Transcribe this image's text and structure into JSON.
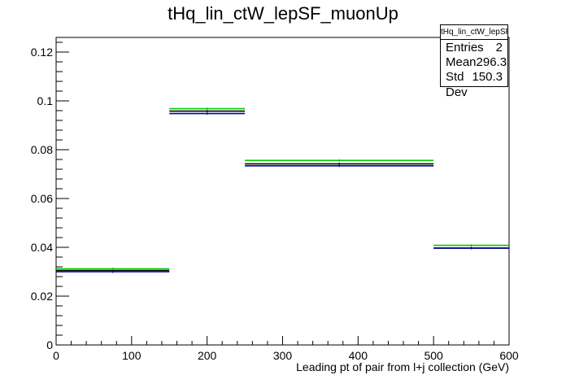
{
  "chart_data": {
    "type": "histogram",
    "title": "tHq_lin_ctW_lepSF_muonUp",
    "xlabel": "Leading pt of pair from l+j collection (GeV)",
    "ylabel": "",
    "xlim": [
      0,
      600
    ],
    "ylim": [
      0,
      0.126
    ],
    "x_ticks": [
      0,
      100,
      200,
      300,
      400,
      500,
      600
    ],
    "y_ticks": [
      0,
      0.02,
      0.04,
      0.06,
      0.08,
      0.1,
      0.12
    ],
    "x_tick_labels": [
      "0",
      "100",
      "200",
      "300",
      "400",
      "500",
      "600"
    ],
    "y_tick_labels": [
      "0",
      "0.02",
      "0.04",
      "0.06",
      "0.08",
      "0.1",
      "0.12"
    ],
    "bin_edges": [
      0,
      150,
      250,
      500,
      600
    ],
    "series": [
      {
        "color": "#000000",
        "values": [
          0.0305,
          0.0958,
          0.0742,
          0.0397
        ]
      },
      {
        "color": "#00cc00",
        "values": [
          0.0312,
          0.0968,
          0.0756,
          0.0408
        ]
      },
      {
        "color": "#0000aa",
        "values": [
          0.03,
          0.0948,
          0.0734,
          0.0397
        ]
      }
    ],
    "grid": false,
    "legend": "none"
  },
  "stats_box": {
    "header": "tHq_lin_ctW_lepSF_muonUp",
    "rows": [
      {
        "label": "Entries",
        "value": "2"
      },
      {
        "label": "Mean",
        "value": "296.3"
      },
      {
        "label": "Std Dev",
        "value": "150.3"
      }
    ]
  }
}
